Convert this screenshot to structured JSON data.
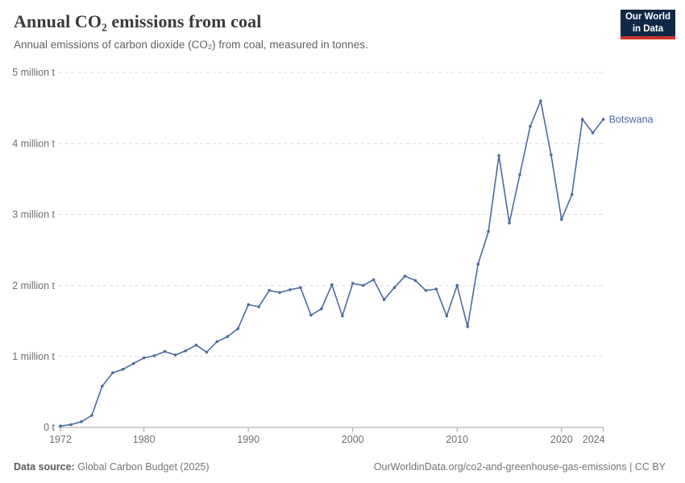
{
  "header": {
    "title": "Annual CO₂ emissions from coal",
    "subtitle": "Annual emissions of carbon dioxide (CO₂) from coal, measured in tonnes.",
    "logo": {
      "line1": "Our World",
      "line2": "in Data"
    }
  },
  "chart_data": {
    "type": "line",
    "title": "Annual CO₂ emissions from coal",
    "xlabel": "",
    "ylabel": "",
    "xlim": [
      1972,
      2024
    ],
    "ylim": [
      0,
      5000000
    ],
    "grid": "horizontal-dashed",
    "legend_position": "end-of-line-label",
    "xticks": [
      1972,
      1980,
      1990,
      2000,
      2010,
      2020,
      2024
    ],
    "yticks": [
      {
        "value": 0,
        "label": "0 t"
      },
      {
        "value": 1000000,
        "label": "1 million t"
      },
      {
        "value": 2000000,
        "label": "2 million t"
      },
      {
        "value": 3000000,
        "label": "3 million t"
      },
      {
        "value": 4000000,
        "label": "4 million t"
      },
      {
        "value": 5000000,
        "label": "5 million t"
      }
    ],
    "x": [
      1972,
      1973,
      1974,
      1975,
      1976,
      1977,
      1978,
      1979,
      1980,
      1981,
      1982,
      1983,
      1984,
      1985,
      1986,
      1987,
      1988,
      1989,
      1990,
      1991,
      1992,
      1993,
      1994,
      1995,
      1996,
      1997,
      1998,
      1999,
      2000,
      2001,
      2002,
      2003,
      2004,
      2005,
      2006,
      2007,
      2008,
      2009,
      2010,
      2011,
      2012,
      2013,
      2014,
      2015,
      2016,
      2017,
      2018,
      2019,
      2020,
      2021,
      2022,
      2023,
      2024
    ],
    "series": [
      {
        "name": "Botswana",
        "color": "#4c6a9c",
        "values": [
          20000,
          40000,
          80000,
          170000,
          580000,
          770000,
          820000,
          900000,
          980000,
          1010000,
          1070000,
          1020000,
          1080000,
          1160000,
          1060000,
          1210000,
          1280000,
          1390000,
          1730000,
          1700000,
          1930000,
          1900000,
          1940000,
          1970000,
          1580000,
          1670000,
          2010000,
          1570000,
          2030000,
          2000000,
          2080000,
          1800000,
          1970000,
          2130000,
          2070000,
          1930000,
          1950000,
          1570000,
          2000000,
          1420000,
          2300000,
          2760000,
          3830000,
          2880000,
          3560000,
          4240000,
          4600000,
          3840000,
          2930000,
          3280000,
          4340000,
          4150000,
          4340000
        ]
      }
    ]
  },
  "footer": {
    "source_label": "Data source:",
    "source_value": "Global Carbon Budget (2025)",
    "attribution": "OurWorldinData.org/co2-and-greenhouse-gas-emissions | CC BY"
  },
  "colors": {
    "line": "#4c6a9c",
    "grid": "#dcdcdc",
    "axis": "#a3a3a3",
    "tick_text": "#6e6e6e",
    "logo_bg": "#102845",
    "logo_accent": "#cd3530"
  }
}
